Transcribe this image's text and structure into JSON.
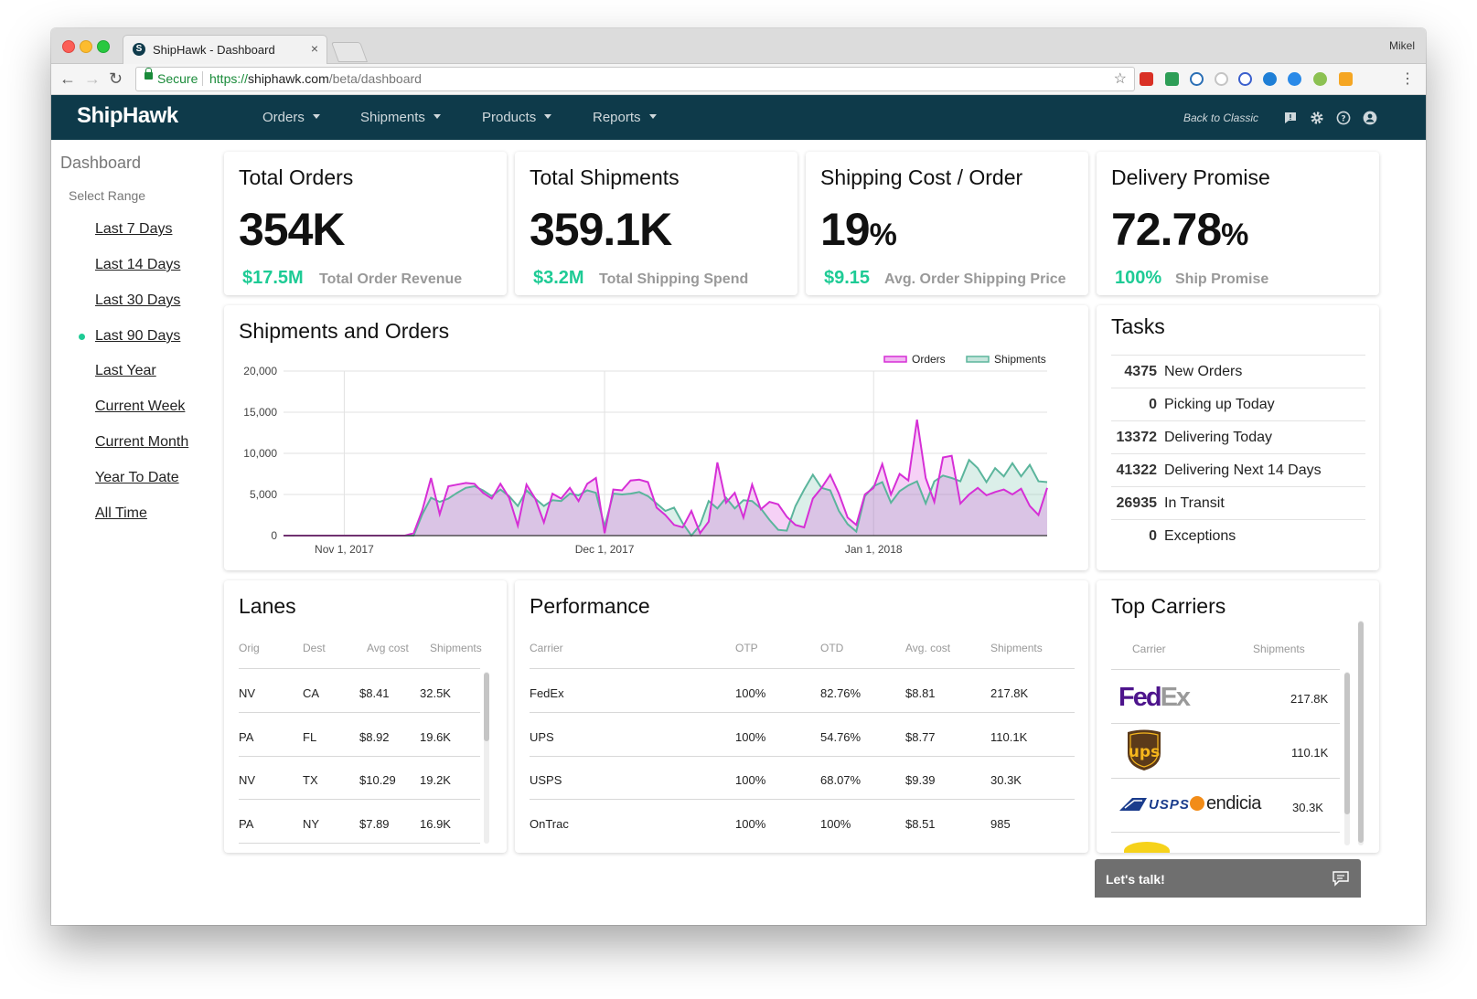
{
  "browser": {
    "tab_title": "ShipHawk - Dashboard",
    "tab_close": "×",
    "user": "Mikel",
    "secure_label": "Secure",
    "url_scheme": "https://",
    "url_host": "shiphawk.com",
    "url_path": "/beta/dashboard"
  },
  "header": {
    "logo": "ShipHawk",
    "nav": [
      "Orders",
      "Shipments",
      "Products",
      "Reports"
    ],
    "back_to_classic": "Back to Classic"
  },
  "sidebar": {
    "title": "Dashboard",
    "subtitle": "Select Range",
    "ranges": [
      "Last 7 Days",
      "Last 14 Days",
      "Last 30 Days",
      "Last 90 Days",
      "Last Year",
      "Current Week",
      "Current Month",
      "Year To Date",
      "All Time"
    ],
    "active_index": 3
  },
  "kpis": [
    {
      "title": "Total Orders",
      "value": "354K",
      "suffix": "",
      "sub_value": "$17.5M",
      "sub_label": "Total Order Revenue"
    },
    {
      "title": "Total Shipments",
      "value": "359.1K",
      "suffix": "",
      "sub_value": "$3.2M",
      "sub_label": "Total Shipping Spend"
    },
    {
      "title": "Shipping Cost / Order",
      "value": "19",
      "suffix": "%",
      "sub_value": "$9.15",
      "sub_label": "Avg. Order Shipping Price"
    },
    {
      "title": "Delivery Promise",
      "value": "72.78",
      "suffix": "%",
      "sub_value": "100%",
      "sub_label": "Ship Promise"
    }
  ],
  "chart_section": {
    "title": "Shipments and Orders"
  },
  "tasks": {
    "title": "Tasks",
    "items": [
      {
        "count": "4375",
        "label": "New Orders"
      },
      {
        "count": "0",
        "label": "Picking up Today"
      },
      {
        "count": "13372",
        "label": "Delivering Today"
      },
      {
        "count": "41322",
        "label": "Delivering Next 14 Days"
      },
      {
        "count": "26935",
        "label": "In Transit"
      },
      {
        "count": "0",
        "label": "Exceptions"
      }
    ]
  },
  "lanes": {
    "title": "Lanes",
    "columns": [
      "Orig",
      "Dest",
      "Avg cost",
      "Shipments"
    ],
    "rows": [
      [
        "NV",
        "CA",
        "$8.41",
        "32.5K"
      ],
      [
        "PA",
        "FL",
        "$8.92",
        "19.6K"
      ],
      [
        "NV",
        "TX",
        "$10.29",
        "19.2K"
      ],
      [
        "PA",
        "NY",
        "$7.89",
        "16.9K"
      ]
    ]
  },
  "performance": {
    "title": "Performance",
    "columns": [
      "Carrier",
      "OTP",
      "OTD",
      "Avg. cost",
      "Shipments"
    ],
    "rows": [
      [
        "FedEx",
        "100%",
        "82.76%",
        "$8.81",
        "217.8K"
      ],
      [
        "UPS",
        "100%",
        "54.76%",
        "$8.77",
        "110.1K"
      ],
      [
        "USPS",
        "100%",
        "68.07%",
        "$9.39",
        "30.3K"
      ],
      [
        "OnTrac",
        "100%",
        "100%",
        "$8.51",
        "985"
      ]
    ]
  },
  "top_carriers": {
    "title": "Top Carriers",
    "columns": [
      "Carrier",
      "Shipments"
    ],
    "rows": [
      {
        "logo": "FedEx",
        "logo_a": "Fed",
        "logo_b": "Ex",
        "shipments": "217.8K"
      },
      {
        "logo": "ups",
        "shipments": "110.1K"
      },
      {
        "logo": "USPS endicia",
        "logo_a": "USPS",
        "logo_b": "endicia",
        "shipments": "30.3K"
      }
    ]
  },
  "chat": {
    "label": "Let's talk!"
  },
  "colors": {
    "header_bg": "#0e3a4a",
    "accent_green": "#1ecb95",
    "orders": "#d62fd6",
    "shipments": "#5bb59c"
  },
  "chart_data": {
    "type": "area",
    "title": "Shipments and Orders",
    "xlabel": "",
    "ylabel": "",
    "ylim": [
      0,
      20000
    ],
    "yticks": [
      "20,000",
      "15,000",
      "10,000",
      "5,000",
      "0"
    ],
    "yticks_values": [
      20000,
      15000,
      10000,
      5000,
      0
    ],
    "x_tick_labels": [
      "Nov 1, 2017",
      "Dec 1, 2017",
      "Jan 1, 2018"
    ],
    "x_tick_days": [
      7,
      37,
      68
    ],
    "legend": "top-right",
    "days_span": 89,
    "series": [
      {
        "name": "Orders",
        "color": "#d62fd6",
        "values": [
          0,
          0,
          0,
          0,
          0,
          0,
          0,
          0,
          0,
          0,
          0,
          0,
          0,
          0,
          0,
          300,
          3100,
          7000,
          2600,
          6000,
          6200,
          6400,
          6300,
          5200,
          4500,
          6300,
          4600,
          1200,
          6200,
          4500,
          1600,
          5100,
          4500,
          5800,
          4200,
          6300,
          7000,
          300,
          5600,
          5500,
          6700,
          6800,
          6500,
          3400,
          2500,
          1300,
          1000,
          3000,
          300,
          1700,
          8900,
          4000,
          5200,
          2200,
          6200,
          3200,
          4100,
          3800,
          2300,
          1300,
          1000,
          4500,
          5800,
          7400,
          5100,
          2200,
          1300,
          5000,
          5800,
          8700,
          5000,
          7500,
          6700,
          14100,
          7000,
          4100,
          9500,
          9700,
          3900,
          5000,
          5800,
          4900,
          5300,
          5600,
          5000,
          5700,
          3600,
          2500,
          5800
        ]
      },
      {
        "name": "Shipments",
        "color": "#5bb59c",
        "values": [
          0,
          0,
          0,
          0,
          0,
          0,
          0,
          0,
          0,
          0,
          0,
          0,
          0,
          0,
          0,
          0,
          2600,
          4600,
          4100,
          4500,
          5200,
          5800,
          6000,
          5500,
          4800,
          5600,
          4800,
          3600,
          5500,
          4500,
          3600,
          4300,
          4200,
          5100,
          4900,
          5500,
          5200,
          1100,
          5100,
          5000,
          5100,
          5300,
          4800,
          3900,
          3000,
          3400,
          1500,
          0,
          1300,
          4200,
          3300,
          4600,
          3300,
          4300,
          4200,
          3300,
          1900,
          700,
          600,
          3600,
          5600,
          7400,
          5800,
          5500,
          3000,
          1400,
          500,
          4800,
          6000,
          6500,
          4000,
          5400,
          6100,
          6600,
          3900,
          6600,
          7300,
          7000,
          6600,
          9200,
          8200,
          6500,
          8200,
          7200,
          8800,
          7200,
          8600,
          6600,
          6500
        ]
      }
    ]
  }
}
